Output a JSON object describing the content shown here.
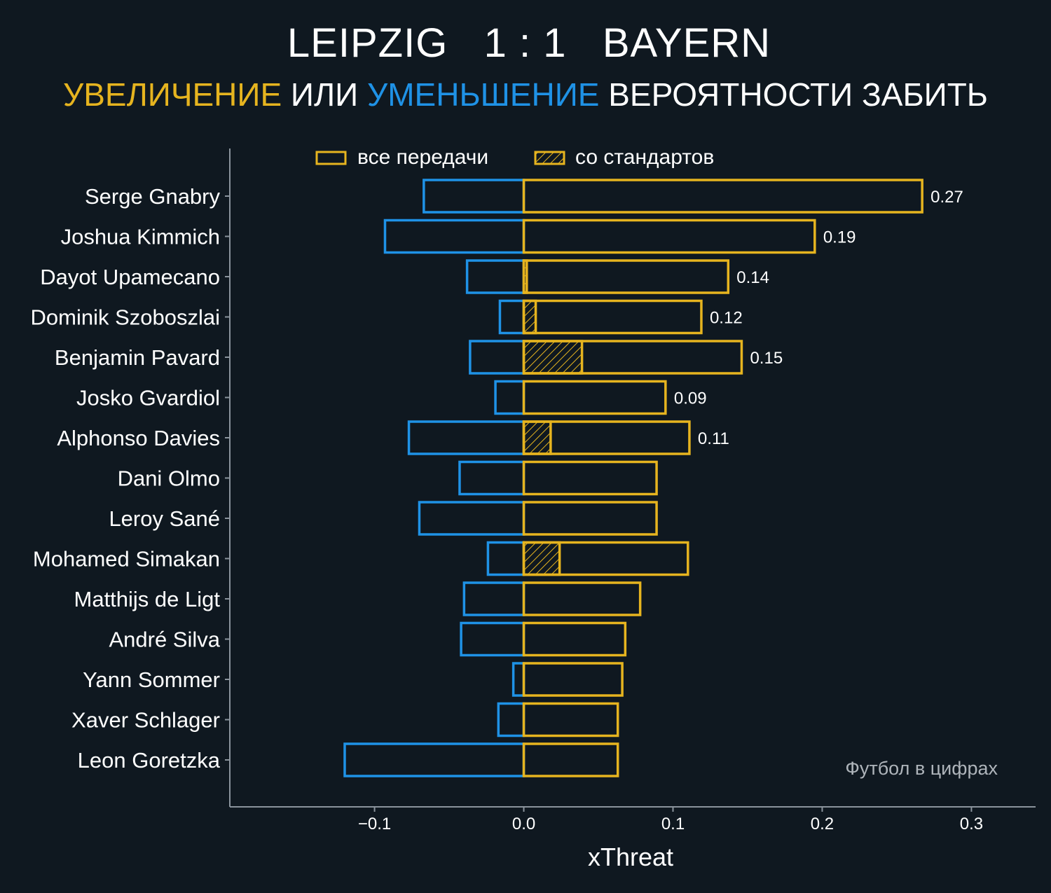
{
  "header": {
    "title": "LEIPZIG   1 : 1   BAYERN",
    "subtitle_increase": "УВЕЛИЧЕНИЕ",
    "subtitle_or": " ИЛИ ",
    "subtitle_decrease": "УМЕНЬШЕНИЕ",
    "subtitle_rest": " ВЕРОЯТНОСТИ ЗАБИТЬ"
  },
  "watermark": "Футбол в цифрах",
  "colors": {
    "background": "#0f1820",
    "increase": "#e6b41f",
    "decrease": "#1f92e6",
    "axis": "#8a939c"
  },
  "chart_data": {
    "type": "bar",
    "orientation": "horizontal",
    "xlabel": "xThreat",
    "xlim": [
      -0.197,
      0.343
    ],
    "xticks": [
      -0.1,
      0.0,
      0.1,
      0.2,
      0.3
    ],
    "xtick_labels": [
      "−0.1",
      "0.0",
      "0.1",
      "0.2",
      "0.3"
    ],
    "legend": {
      "placement": "top",
      "items": [
        {
          "label": "все передачи",
          "style": "outline"
        },
        {
          "label": "со стандартов",
          "style": "hatched"
        }
      ]
    },
    "categories": [
      "Serge Gnabry",
      "Joshua Kimmich",
      "Dayot Upamecano",
      "Dominik Szoboszlai",
      "Benjamin Pavard",
      "Josko Gvardiol",
      "Alphonso Davies",
      "Dani Olmo",
      "Leroy Sané",
      "Mohamed Simakan",
      "Matthijs de Ligt",
      "André Silva",
      "Yann Sommer",
      "Xaver Schlager",
      "Leon Goretzka"
    ],
    "series": [
      {
        "name": "увеличение (все передачи)",
        "values": [
          0.267,
          0.195,
          0.137,
          0.119,
          0.146,
          0.095,
          0.111,
          0.089,
          0.089,
          0.11,
          0.078,
          0.068,
          0.066,
          0.063,
          0.063
        ]
      },
      {
        "name": "увеличение (со стандартов)",
        "values": [
          0,
          0,
          0.002,
          0.008,
          0.039,
          0,
          0.018,
          0,
          0,
          0.024,
          0,
          0,
          0,
          0,
          0
        ]
      },
      {
        "name": "уменьшение",
        "values": [
          -0.067,
          -0.093,
          -0.038,
          -0.016,
          -0.036,
          -0.019,
          -0.077,
          -0.043,
          -0.07,
          -0.024,
          -0.04,
          -0.042,
          -0.007,
          -0.017,
          -0.12
        ]
      }
    ],
    "value_labels": [
      "0.27",
      "0.19",
      "0.14",
      "0.12",
      "0.15",
      "0.09",
      "0.11",
      "",
      "",
      "",
      "",
      "",
      "",
      "",
      ""
    ]
  }
}
